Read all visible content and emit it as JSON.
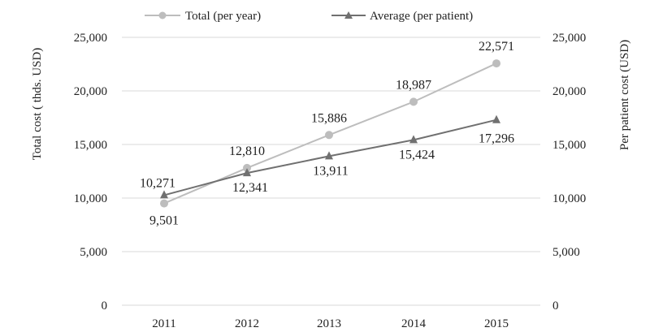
{
  "chart_data": {
    "type": "line",
    "x": [
      "2011",
      "2012",
      "2013",
      "2014",
      "2015"
    ],
    "series": [
      {
        "name": "Total (per year)",
        "axis": "left",
        "color": "#bdbdbd",
        "marker": "circle",
        "values": [
          9501,
          12810,
          15886,
          18987,
          22571
        ],
        "labels": [
          "9,501",
          "12,810",
          "15,886",
          "18,987",
          "22,571"
        ]
      },
      {
        "name": "Average (per patient)",
        "axis": "right",
        "color": "#707070",
        "marker": "triangle",
        "values": [
          10271,
          12341,
          13911,
          15424,
          17296
        ],
        "labels": [
          "10,271",
          "12,341",
          "13,911",
          "15,424",
          "17,296"
        ]
      }
    ],
    "ylabel": "Total cost ( thds. USD)",
    "ylabel_right": "Per patient cost (USD)",
    "ylim": [
      0,
      25000
    ],
    "ylim_right": [
      0,
      25000
    ],
    "yticks": [
      "0",
      "5,000",
      "10,000",
      "15,000",
      "20,000",
      "25,000"
    ],
    "yticks_right": [
      "0",
      "5,000",
      "10,000",
      "15,000",
      "20,000",
      "25,000"
    ],
    "grid": "horizontal",
    "legend_position": "top-center"
  }
}
